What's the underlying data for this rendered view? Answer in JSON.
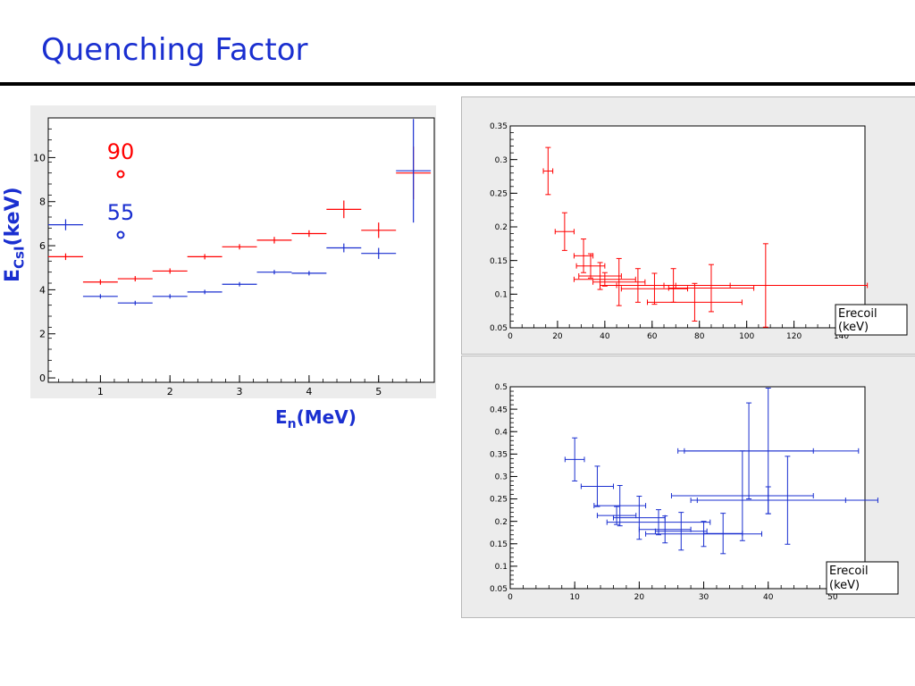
{
  "slide": {
    "title": "Quenching Factor"
  },
  "chart_data": [
    {
      "type": "scatter",
      "xlabel_base": "E",
      "xlabel_sub": "n",
      "xlabel_unit": "(MeV)",
      "ylabel_base": "E",
      "ylabel_sub": "CsI",
      "ylabel_unit": "(keV)",
      "xlim": [
        0.25,
        5.8
      ],
      "ylim": [
        -0.2,
        11.8
      ],
      "xticks": [
        1,
        2,
        3,
        4,
        5
      ],
      "yticks": [
        0,
        2,
        4,
        6,
        8,
        10
      ],
      "legend": [
        {
          "label": "90",
          "color": "#ff0000"
        },
        {
          "label": "55",
          "color": "#1a2fd0"
        }
      ],
      "series": [
        {
          "color": "#ff0000",
          "points": [
            {
              "x": 0.5,
              "xerr": 0.25,
              "y": 5.5,
              "yerr": 0.15
            },
            {
              "x": 1.0,
              "xerr": 0.25,
              "y": 4.35,
              "yerr": 0.12
            },
            {
              "x": 1.5,
              "xerr": 0.25,
              "y": 4.5,
              "yerr": 0.12
            },
            {
              "x": 2.0,
              "xerr": 0.25,
              "y": 4.85,
              "yerr": 0.12
            },
            {
              "x": 2.5,
              "xerr": 0.25,
              "y": 5.5,
              "yerr": 0.12
            },
            {
              "x": 3.0,
              "xerr": 0.25,
              "y": 5.95,
              "yerr": 0.12
            },
            {
              "x": 3.5,
              "xerr": 0.25,
              "y": 6.25,
              "yerr": 0.15
            },
            {
              "x": 4.0,
              "xerr": 0.25,
              "y": 6.55,
              "yerr": 0.15
            },
            {
              "x": 4.5,
              "xerr": 0.25,
              "y": 7.65,
              "yerr": 0.4
            },
            {
              "x": 5.0,
              "xerr": 0.25,
              "y": 6.7,
              "yerr": 0.35
            },
            {
              "x": 5.5,
              "xerr": 0.25,
              "y": 9.3,
              "yerr": 1.2
            }
          ]
        },
        {
          "color": "#1a2fd0",
          "points": [
            {
              "x": 0.5,
              "xerr": 0.25,
              "y": 6.95,
              "yerr": 0.25
            },
            {
              "x": 1.0,
              "xerr": 0.25,
              "y": 3.7,
              "yerr": 0.1
            },
            {
              "x": 1.5,
              "xerr": 0.25,
              "y": 3.4,
              "yerr": 0.1
            },
            {
              "x": 2.0,
              "xerr": 0.25,
              "y": 3.7,
              "yerr": 0.1
            },
            {
              "x": 2.5,
              "xerr": 0.25,
              "y": 3.9,
              "yerr": 0.1
            },
            {
              "x": 3.0,
              "xerr": 0.25,
              "y": 4.25,
              "yerr": 0.1
            },
            {
              "x": 3.5,
              "xerr": 0.25,
              "y": 4.8,
              "yerr": 0.1
            },
            {
              "x": 4.0,
              "xerr": 0.25,
              "y": 4.75,
              "yerr": 0.1
            },
            {
              "x": 4.5,
              "xerr": 0.25,
              "y": 5.9,
              "yerr": 0.2
            },
            {
              "x": 5.0,
              "xerr": 0.25,
              "y": 5.65,
              "yerr": 0.25
            },
            {
              "x": 5.5,
              "xerr": 0.25,
              "y": 9.4,
              "yerr": 2.35
            }
          ]
        }
      ]
    },
    {
      "type": "scatter",
      "xlabel": "Erecoil (keV)",
      "xlim": [
        0,
        150
      ],
      "ylim": [
        0.05,
        0.35
      ],
      "xticks": [
        0,
        20,
        40,
        60,
        80,
        100,
        120,
        140
      ],
      "yticks": [
        0.05,
        0.1,
        0.15,
        0.2,
        0.25,
        0.3,
        0.35
      ],
      "series": [
        {
          "color": "#ff0000",
          "points": [
            {
              "x": 16,
              "xerr": 2,
              "y": 0.283,
              "yerr": 0.035
            },
            {
              "x": 23,
              "xerr": 4,
              "y": 0.193,
              "yerr": 0.028
            },
            {
              "x": 31,
              "xerr": 4,
              "y": 0.157,
              "yerr": 0.025
            },
            {
              "x": 34,
              "xerr": 6,
              "y": 0.142,
              "yerr": 0.018
            },
            {
              "x": 38,
              "xerr": 9,
              "y": 0.127,
              "yerr": 0.02
            },
            {
              "x": 40,
              "xerr": 13,
              "y": 0.122,
              "yerr": 0.01
            },
            {
              "x": 46,
              "xerr": 11,
              "y": 0.118,
              "yerr": 0.035
            },
            {
              "x": 54,
              "xerr": 16,
              "y": 0.113,
              "yerr": 0.025
            },
            {
              "x": 61,
              "xerr": 14,
              "y": 0.108,
              "yerr": 0.023
            },
            {
              "x": 69,
              "xerr": 24,
              "y": 0.113,
              "yerr": 0.025
            },
            {
              "x": 78,
              "xerr": 20,
              "y": 0.088,
              "yerr": 0.028
            },
            {
              "x": 85,
              "xerr": 18,
              "y": 0.109,
              "yerr": 0.035
            },
            {
              "x": 108,
              "xerr": 43,
              "y": 0.113,
              "yerr": 0.062
            }
          ]
        }
      ]
    },
    {
      "type": "scatter",
      "xlabel": "Erecoil (keV)",
      "xlim": [
        0,
        55
      ],
      "ylim": [
        0.05,
        0.5
      ],
      "xticks": [
        0,
        10,
        20,
        30,
        40,
        50
      ],
      "yticks": [
        0.05,
        0.1,
        0.15,
        0.2,
        0.25,
        0.3,
        0.35,
        0.4,
        0.45,
        0.5
      ],
      "series": [
        {
          "color": "#1a2fd0",
          "points": [
            {
              "x": 10,
              "xerr": 1.5,
              "y": 0.338,
              "yerr": 0.048
            },
            {
              "x": 13.5,
              "xerr": 2.5,
              "y": 0.278,
              "yerr": 0.045
            },
            {
              "x": 16.5,
              "xerr": 3,
              "y": 0.213,
              "yerr": 0.02
            },
            {
              "x": 17,
              "xerr": 4,
              "y": 0.235,
              "yerr": 0.045
            },
            {
              "x": 20,
              "xerr": 4,
              "y": 0.208,
              "yerr": 0.048
            },
            {
              "x": 23,
              "xerr": 8,
              "y": 0.198,
              "yerr": 0.028
            },
            {
              "x": 24,
              "xerr": 4,
              "y": 0.182,
              "yerr": 0.03
            },
            {
              "x": 26.5,
              "xerr": 4,
              "y": 0.178,
              "yerr": 0.042
            },
            {
              "x": 30,
              "xerr": 9,
              "y": 0.172,
              "yerr": 0.028
            },
            {
              "x": 33,
              "xerr": 3,
              "y": 0.173,
              "yerr": 0.045
            },
            {
              "x": 36,
              "xerr": 11,
              "y": 0.257,
              "yerr": 0.1
            },
            {
              "x": 37,
              "xerr": 10,
              "y": 0.357,
              "yerr": 0.107
            },
            {
              "x": 40,
              "xerr": 12,
              "y": 0.247,
              "yerr": 0.03
            },
            {
              "x": 40,
              "xerr": 14,
              "y": 0.357,
              "yerr": 0.14
            },
            {
              "x": 43,
              "xerr": 14,
              "y": 0.247,
              "yerr": 0.098
            }
          ]
        }
      ]
    }
  ]
}
